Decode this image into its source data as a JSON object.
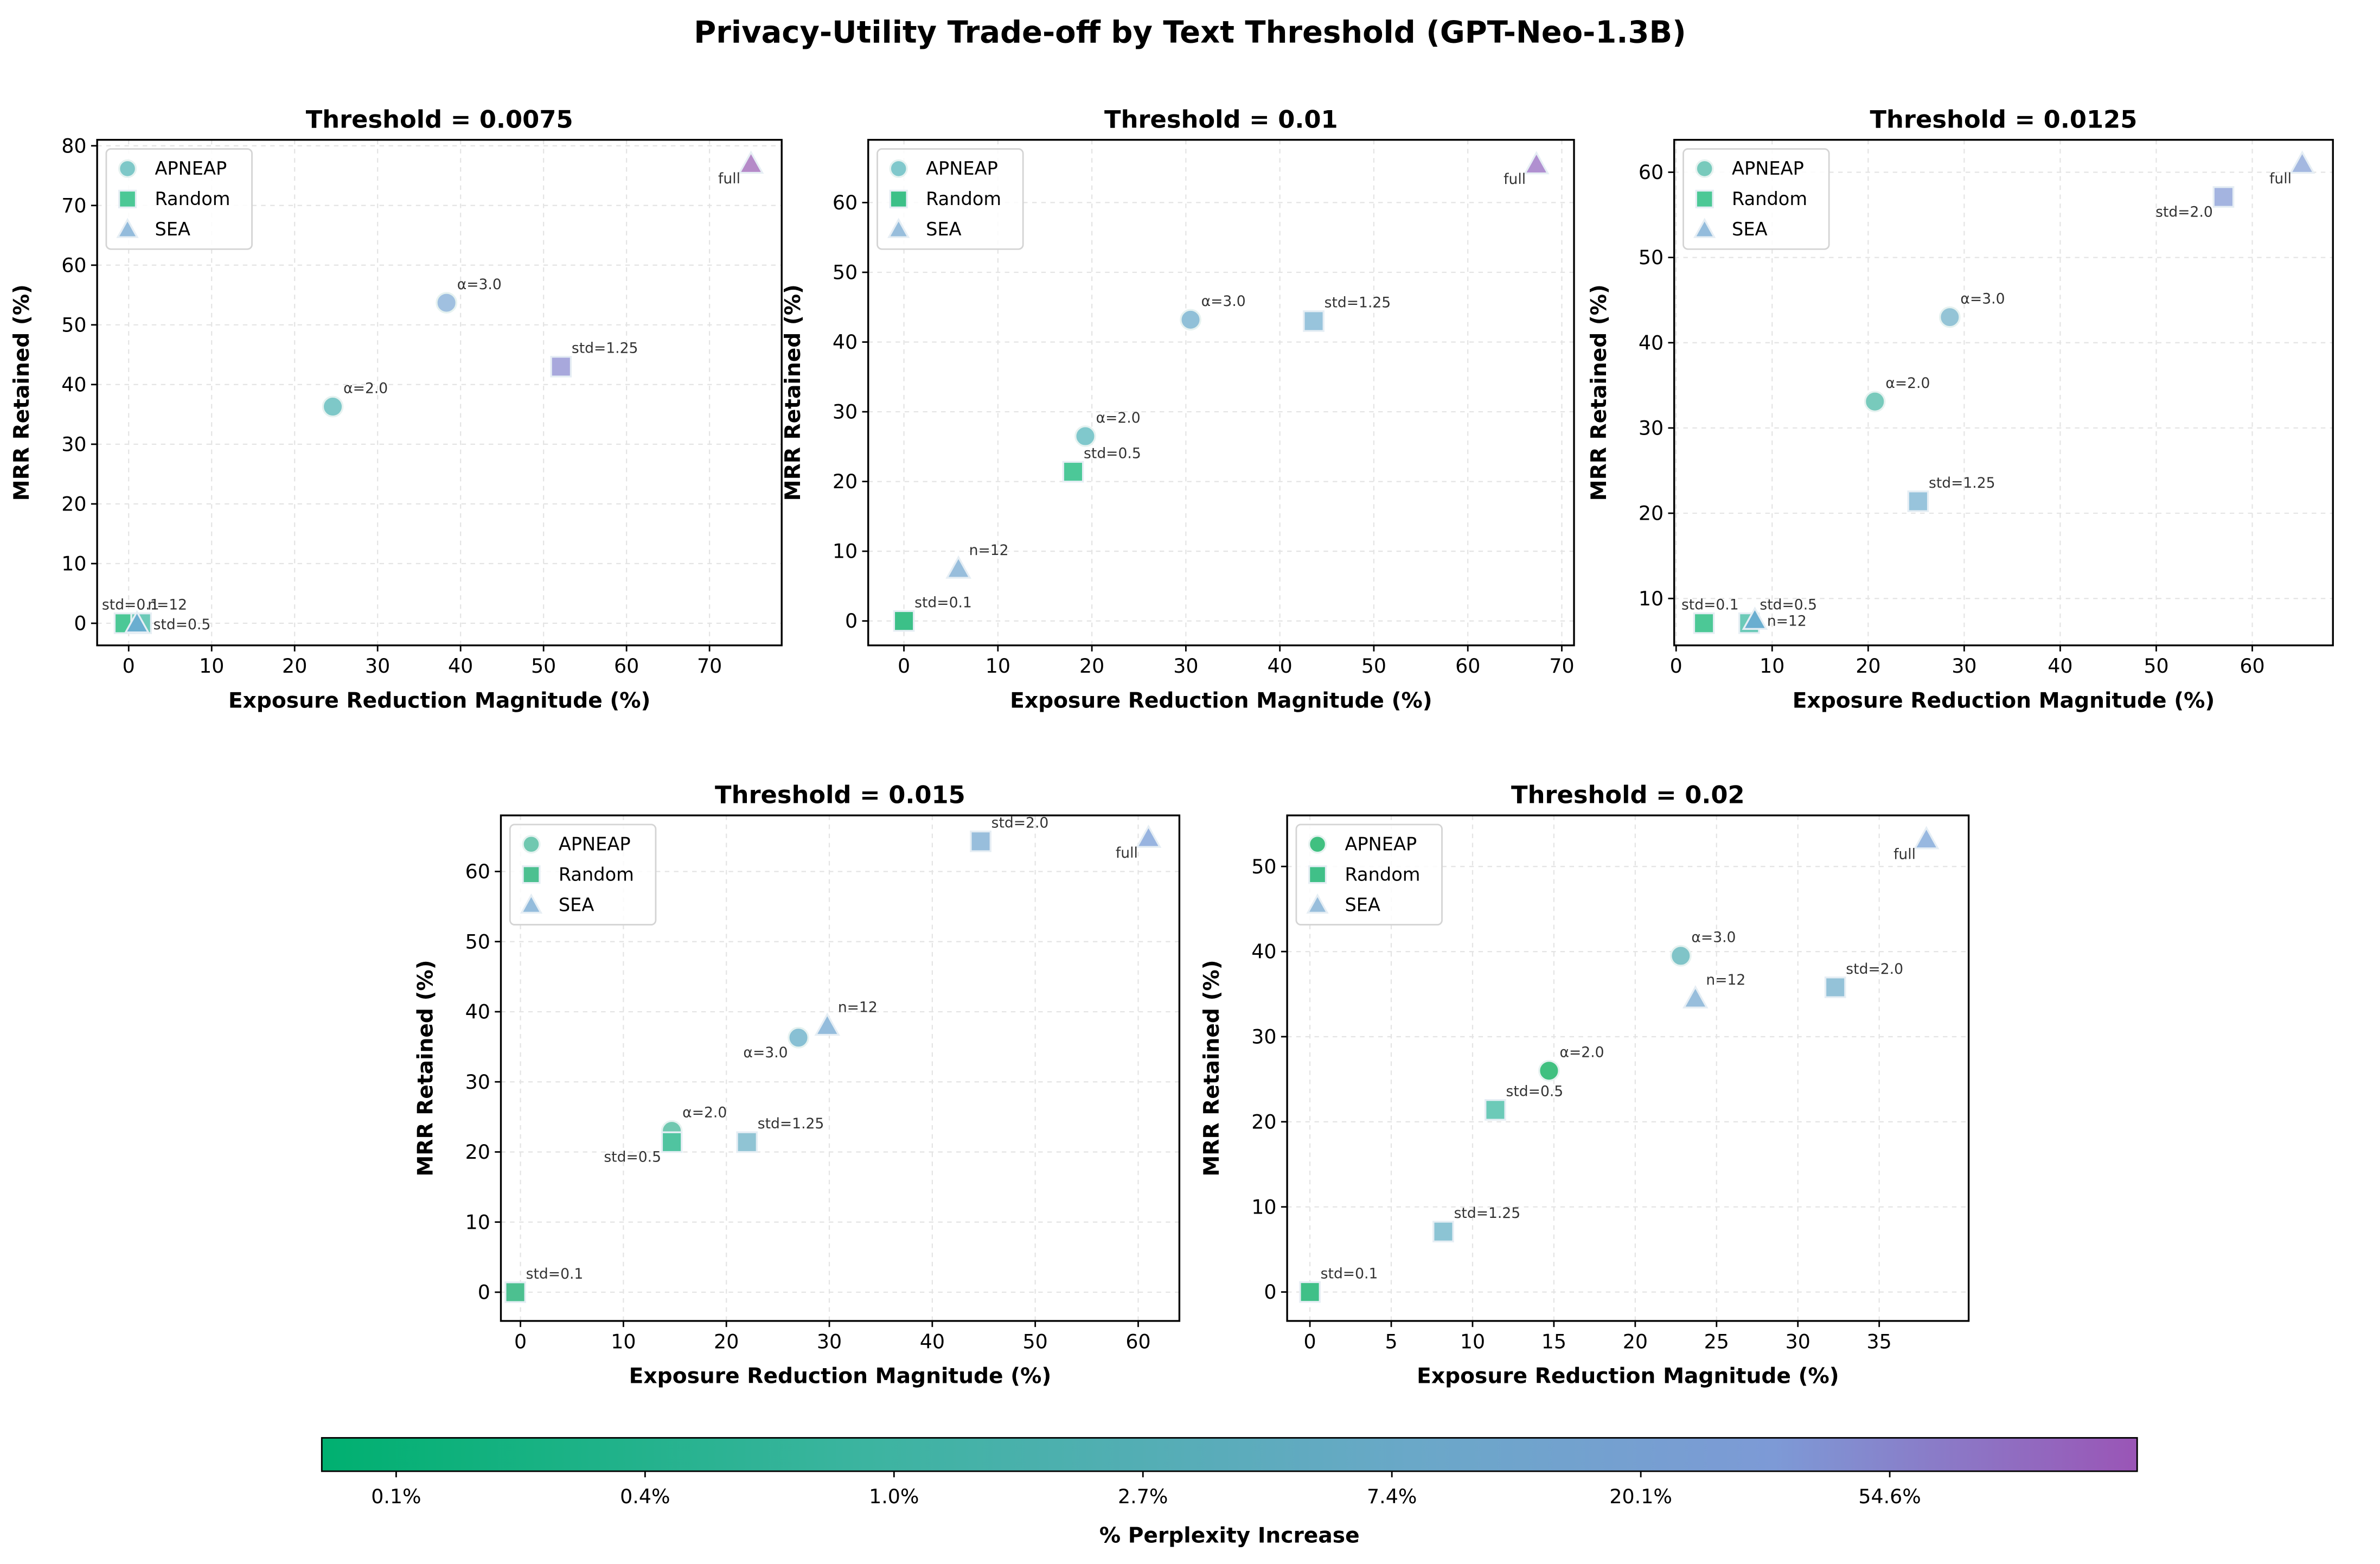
{
  "title": "Privacy-Utility Trade-off by Text Threshold (GPT-Neo-1.3B)",
  "colorbar": {
    "label": "% Perplexity Increase",
    "ticks": [
      "0.1%",
      "0.4%",
      "1.0%",
      "2.7%",
      "7.4%",
      "20.1%",
      "54.6%"
    ],
    "colors": [
      "#00b070",
      "#3cb4a0",
      "#6aa8c8",
      "#7d9ad6",
      "#9a55b6"
    ]
  },
  "chart_data": [
    {
      "type": "scatter",
      "title": "Threshold = 0.0075",
      "xlabel": "Exposure Reduction Magnitude (%)",
      "ylabel": "MRR Retained (%)",
      "xlim": [
        -3.8,
        78.7
      ],
      "ylim": [
        -3.7,
        81
      ],
      "xticks": [
        0,
        10,
        20,
        30,
        40,
        50,
        60,
        70
      ],
      "yticks": [
        0,
        10,
        20,
        30,
        40,
        50,
        60,
        70,
        80
      ],
      "grid": true,
      "legend": "upper-left",
      "legend_entries": [
        {
          "name": "APNEAP",
          "marker": "circle",
          "color": "#7ec8c8"
        },
        {
          "name": "Random",
          "marker": "square",
          "color": "#4cc896"
        },
        {
          "name": "SEA",
          "marker": "triangle",
          "color": "#94bcdc"
        }
      ],
      "points": [
        {
          "method": "Random",
          "label": "std=0.1",
          "x": -0.5,
          "y": 0,
          "color": "#4cc896",
          "label_anchor": "upper-left"
        },
        {
          "method": "Random",
          "label": "std=0.5",
          "x": 1.5,
          "y": 0,
          "color": "#6ccab8",
          "label_anchor": "right"
        },
        {
          "method": "SEA",
          "label": "n=12",
          "x": 1.0,
          "y": 0,
          "color": "#6aaed0",
          "label_anchor": "upper-right"
        },
        {
          "method": "APNEAP",
          "label": "α=2.0",
          "x": 24.6,
          "y": 36.3,
          "color": "#7ec8c8",
          "label_anchor": "upper-right"
        },
        {
          "method": "APNEAP",
          "label": "α=3.0",
          "x": 38.3,
          "y": 53.7,
          "color": "#a0c0e0",
          "label_anchor": "upper-right"
        },
        {
          "method": "Random",
          "label": "std=1.25",
          "x": 52.1,
          "y": 43.0,
          "color": "#a8a8dc",
          "label_anchor": "upper-right"
        },
        {
          "method": "SEA",
          "label": "full",
          "x": 75.0,
          "y": 77.0,
          "color": "#b58ac8",
          "label_anchor": "lower-left"
        }
      ]
    },
    {
      "type": "scatter",
      "title": "Threshold = 0.01",
      "xlabel": "Exposure Reduction Magnitude (%)",
      "ylabel": "MRR Retained (%)",
      "xlim": [
        -3.8,
        71.3
      ],
      "ylim": [
        -3.5,
        69
      ],
      "xticks": [
        0,
        10,
        20,
        30,
        40,
        50,
        60,
        70
      ],
      "yticks": [
        0,
        10,
        20,
        30,
        40,
        50,
        60
      ],
      "grid": true,
      "legend": "upper-left",
      "legend_entries": [
        {
          "name": "APNEAP",
          "marker": "circle",
          "color": "#80c8cc"
        },
        {
          "name": "Random",
          "marker": "square",
          "color": "#3cc088"
        },
        {
          "name": "SEA",
          "marker": "triangle",
          "color": "#98bedc"
        }
      ],
      "points": [
        {
          "method": "Random",
          "label": "std=0.1",
          "x": 0,
          "y": 0,
          "color": "#3cc088",
          "label_anchor": "upper-right"
        },
        {
          "method": "SEA",
          "label": "n=12",
          "x": 5.8,
          "y": 7.5,
          "color": "#98bedc",
          "label_anchor": "upper-right"
        },
        {
          "method": "Random",
          "label": "std=0.5",
          "x": 18.0,
          "y": 21.4,
          "color": "#4cc898",
          "label_anchor": "upper-right"
        },
        {
          "method": "APNEAP",
          "label": "α=2.0",
          "x": 19.3,
          "y": 26.5,
          "color": "#80c8cc",
          "label_anchor": "upper-right"
        },
        {
          "method": "APNEAP",
          "label": "α=3.0",
          "x": 30.5,
          "y": 43.2,
          "color": "#90c0d8",
          "label_anchor": "upper-right"
        },
        {
          "method": "Random",
          "label": "std=1.25",
          "x": 43.6,
          "y": 43.0,
          "color": "#98c4dc",
          "label_anchor": "upper-right"
        },
        {
          "method": "SEA",
          "label": "full",
          "x": 67.3,
          "y": 65.5,
          "color": "#b090d0",
          "label_anchor": "lower-left"
        }
      ]
    },
    {
      "type": "scatter",
      "title": "Threshold = 0.0125",
      "xlabel": "Exposure Reduction Magnitude (%)",
      "ylabel": "MRR Retained (%)",
      "xlim": [
        -0.2,
        68.4
      ],
      "ylim": [
        4.5,
        63.8
      ],
      "xticks": [
        0,
        10,
        20,
        30,
        40,
        50,
        60
      ],
      "yticks": [
        10,
        20,
        30,
        40,
        50,
        60
      ],
      "grid": true,
      "legend": "upper-left",
      "legend_entries": [
        {
          "name": "APNEAP",
          "marker": "circle",
          "color": "#78cabc"
        },
        {
          "name": "Random",
          "marker": "square",
          "color": "#4cc896"
        },
        {
          "name": "SEA",
          "marker": "triangle",
          "color": "#94bcdc"
        }
      ],
      "points": [
        {
          "method": "Random",
          "label": "std=0.1",
          "x": 2.9,
          "y": 7.1,
          "color": "#4cc896",
          "label_anchor": "upper-left"
        },
        {
          "method": "Random",
          "label": "std=0.5",
          "x": 7.6,
          "y": 7.1,
          "color": "#6ccab8",
          "label_anchor": "upper-right"
        },
        {
          "method": "SEA",
          "label": "n=12",
          "x": 8.2,
          "y": 7.5,
          "color": "#6aaed0",
          "label_anchor": "right"
        },
        {
          "method": "APNEAP",
          "label": "α=2.0",
          "x": 20.7,
          "y": 33.1,
          "color": "#78cabc",
          "label_anchor": "upper-right"
        },
        {
          "method": "Random",
          "label": "std=1.25",
          "x": 25.2,
          "y": 21.4,
          "color": "#98c4dc",
          "label_anchor": "upper-right"
        },
        {
          "method": "APNEAP",
          "label": "α=3.0",
          "x": 28.5,
          "y": 43.0,
          "color": "#94c4d6",
          "label_anchor": "upper-right"
        },
        {
          "method": "Random",
          "label": "std=2.0",
          "x": 57.0,
          "y": 57.1,
          "color": "#a4b4e0",
          "label_anchor": "lower-left"
        },
        {
          "method": "SEA",
          "label": "full",
          "x": 65.2,
          "y": 61.0,
          "color": "#a4b8e0",
          "label_anchor": "lower-left"
        }
      ]
    },
    {
      "type": "scatter",
      "title": "Threshold = 0.015",
      "xlabel": "Exposure Reduction Magnitude (%)",
      "ylabel": "MRR Retained (%)",
      "xlim": [
        -1.9,
        64
      ],
      "ylim": [
        -4.1,
        68
      ],
      "xticks": [
        0,
        10,
        20,
        30,
        40,
        50,
        60
      ],
      "yticks": [
        0,
        10,
        20,
        30,
        40,
        50,
        60
      ],
      "grid": true,
      "legend": "upper-left",
      "legend_entries": [
        {
          "name": "APNEAP",
          "marker": "circle",
          "color": "#70c8b0"
        },
        {
          "name": "Random",
          "marker": "square",
          "color": "#4cc090"
        },
        {
          "name": "SEA",
          "marker": "triangle",
          "color": "#94bcdc"
        }
      ],
      "points": [
        {
          "method": "Random",
          "label": "std=0.1",
          "x": -0.5,
          "y": 0,
          "color": "#4cc090",
          "label_anchor": "upper-right"
        },
        {
          "method": "APNEAP",
          "label": "α=2.0",
          "x": 14.7,
          "y": 23.0,
          "color": "#70c8b0",
          "label_anchor": "upper-right"
        },
        {
          "method": "Random",
          "label": "std=0.5",
          "x": 14.7,
          "y": 21.4,
          "color": "#50c4a0",
          "label_anchor": "lower-left"
        },
        {
          "method": "Random",
          "label": "std=1.25",
          "x": 22.0,
          "y": 21.4,
          "color": "#90c4d4",
          "label_anchor": "upper-right"
        },
        {
          "method": "APNEAP",
          "label": "α=3.0",
          "x": 27.0,
          "y": 36.3,
          "color": "#88c0d4",
          "label_anchor": "lower-left"
        },
        {
          "method": "SEA",
          "label": "n=12",
          "x": 29.8,
          "y": 38.0,
          "color": "#94bcdc",
          "label_anchor": "upper-right"
        },
        {
          "method": "Random",
          "label": "std=2.0",
          "x": 44.7,
          "y": 64.3,
          "color": "#98bedc",
          "label_anchor": "upper-right"
        },
        {
          "method": "SEA",
          "label": "full",
          "x": 61.0,
          "y": 64.8,
          "color": "#98b4e0",
          "label_anchor": "lower-left"
        }
      ]
    },
    {
      "type": "scatter",
      "title": "Threshold = 0.02",
      "xlabel": "Exposure Reduction Magnitude (%)",
      "ylabel": "MRR Retained (%)",
      "xlim": [
        -1.4,
        40.5
      ],
      "ylim": [
        -3.4,
        56
      ],
      "xticks": [
        0,
        5,
        10,
        15,
        20,
        25,
        30,
        35
      ],
      "yticks": [
        0,
        10,
        20,
        30,
        40,
        50
      ],
      "grid": true,
      "legend": "upper-left",
      "legend_entries": [
        {
          "name": "APNEAP",
          "marker": "circle",
          "color": "#40c080"
        },
        {
          "name": "Random",
          "marker": "square",
          "color": "#40c088"
        },
        {
          "name": "SEA",
          "marker": "triangle",
          "color": "#98bedc"
        }
      ],
      "points": [
        {
          "method": "Random",
          "label": "std=0.1",
          "x": 0,
          "y": 0,
          "color": "#40c088",
          "label_anchor": "upper-right"
        },
        {
          "method": "Random",
          "label": "std=1.25",
          "x": 8.2,
          "y": 7.1,
          "color": "#8cc4d4",
          "label_anchor": "upper-right"
        },
        {
          "method": "Random",
          "label": "std=0.5",
          "x": 11.4,
          "y": 21.4,
          "color": "#6ccab8",
          "label_anchor": "upper-right"
        },
        {
          "method": "APNEAP",
          "label": "α=2.0",
          "x": 14.7,
          "y": 26.0,
          "color": "#40c080",
          "label_anchor": "upper-right"
        },
        {
          "method": "APNEAP",
          "label": "α=3.0",
          "x": 22.8,
          "y": 39.5,
          "color": "#80c4c8",
          "label_anchor": "upper-right"
        },
        {
          "method": "SEA",
          "label": "n=12",
          "x": 23.7,
          "y": 34.5,
          "color": "#98bedc",
          "label_anchor": "upper-right"
        },
        {
          "method": "Random",
          "label": "std=2.0",
          "x": 32.3,
          "y": 35.8,
          "color": "#94c2d8",
          "label_anchor": "upper-right"
        },
        {
          "method": "SEA",
          "label": "full",
          "x": 37.9,
          "y": 53.2,
          "color": "#98b8e0",
          "label_anchor": "lower-left"
        }
      ]
    }
  ]
}
